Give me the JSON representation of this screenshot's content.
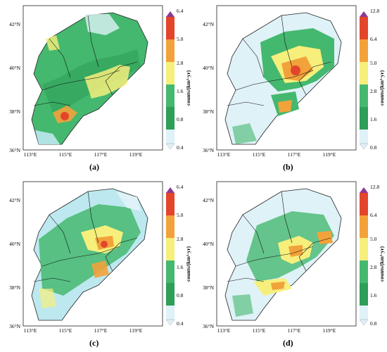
{
  "panels": [
    {
      "label": "(a)",
      "unit": "counts/(km²·yr)",
      "colorbar_ticks": [
        "6.4",
        "5.0",
        "2.8",
        "1.6",
        "0.8",
        "0.4"
      ],
      "lon_ticks": [
        "113°E",
        "115°E",
        "117°E",
        "119°E"
      ],
      "lat_ticks": [
        "42°N",
        "40°N",
        "38°N",
        "36°N"
      ]
    },
    {
      "label": "(b)",
      "unit": "counts/(km²·yr)",
      "colorbar_ticks": [
        "12.8",
        "6.4",
        "5.0",
        "2.8",
        "1.6",
        "0.8"
      ],
      "lon_ticks": [
        "113°E",
        "115°E",
        "117°E",
        "119°E"
      ],
      "lat_ticks": [
        "42°N",
        "40°N",
        "38°N",
        "36°N"
      ]
    },
    {
      "label": "(c)",
      "unit": "counts/(km²·yr)",
      "colorbar_ticks": [
        "6.4",
        "5.0",
        "2.8",
        "1.6",
        "0.8",
        "0.4"
      ],
      "lon_ticks": [
        "113°E",
        "115°E",
        "117°E",
        "119°E"
      ],
      "lat_ticks": [
        "42°N",
        "40°N",
        "38°N",
        "36°N"
      ]
    },
    {
      "label": "(d)",
      "unit": "counts/(km²·yr)",
      "colorbar_ticks": [
        "12.8",
        "6.4",
        "5.0",
        "2.8",
        "1.6",
        "0.8"
      ],
      "lon_ticks": [
        "113°E",
        "115°E",
        "117°E",
        "119°E"
      ],
      "lat_ticks": [
        "42°N",
        "40°N",
        "38°N",
        "36°N"
      ]
    }
  ],
  "colors": {
    "c0": "#dff2f7",
    "c1": "#bde8ef",
    "c2": "#45b86f",
    "c3": "#2e9e58",
    "c4": "#f6ef7c",
    "c5": "#f2a23a",
    "c6": "#e3452b",
    "c7": "#8a3b96"
  }
}
